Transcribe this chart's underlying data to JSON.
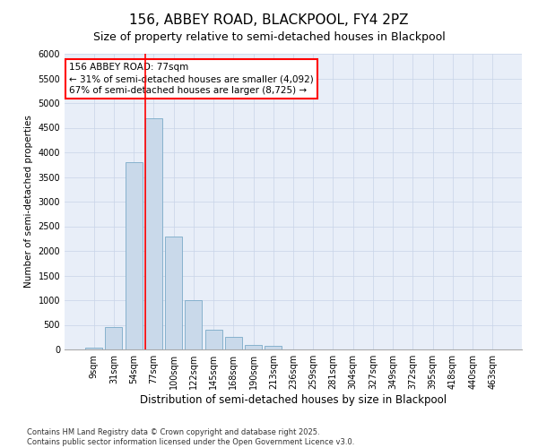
{
  "title": "156, ABBEY ROAD, BLACKPOOL, FY4 2PZ",
  "subtitle": "Size of property relative to semi-detached houses in Blackpool",
  "xlabel": "Distribution of semi-detached houses by size in Blackpool",
  "ylabel": "Number of semi-detached properties",
  "categories": [
    "9sqm",
    "31sqm",
    "54sqm",
    "77sqm",
    "100sqm",
    "122sqm",
    "145sqm",
    "168sqm",
    "190sqm",
    "213sqm",
    "236sqm",
    "259sqm",
    "281sqm",
    "304sqm",
    "327sqm",
    "349sqm",
    "372sqm",
    "395sqm",
    "418sqm",
    "440sqm",
    "463sqm"
  ],
  "values": [
    30,
    450,
    3800,
    4700,
    2300,
    1000,
    400,
    250,
    100,
    75,
    0,
    0,
    0,
    0,
    0,
    0,
    0,
    0,
    0,
    0,
    0
  ],
  "bar_color": "#c9d9ea",
  "bar_edge_color": "#7aaac8",
  "vline_color": "red",
  "vline_x_index": 3,
  "annotation_text_line1": "156 ABBEY ROAD: 77sqm",
  "annotation_text_line2": "← 31% of semi-detached houses are smaller (4,092)",
  "annotation_text_line3": "67% of semi-detached houses are larger (8,725) →",
  "annotation_box_color": "white",
  "annotation_box_edge_color": "red",
  "ylim": [
    0,
    6000
  ],
  "yticks": [
    0,
    500,
    1000,
    1500,
    2000,
    2500,
    3000,
    3500,
    4000,
    4500,
    5000,
    5500,
    6000
  ],
  "grid_color": "#c8d4e8",
  "background_color": "#e8eef8",
  "footnote": "Contains HM Land Registry data © Crown copyright and database right 2025.\nContains public sector information licensed under the Open Government Licence v3.0.",
  "title_fontsize": 11,
  "subtitle_fontsize": 9,
  "xlabel_fontsize": 8.5,
  "ylabel_fontsize": 7.5,
  "tick_fontsize": 7,
  "annotation_fontsize": 7.5,
  "footnote_fontsize": 6
}
